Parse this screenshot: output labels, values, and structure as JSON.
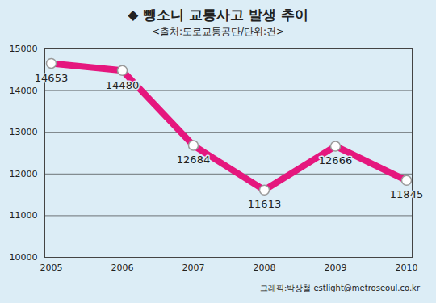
{
  "chart_data": {
    "type": "line",
    "title": "◆ 뺑소니 교통사고 발생 추이",
    "subtitle": "<출처:도로교통공단/단위:건>",
    "caption": "그래픽:박상철 estlight@metroseoul.co.kr",
    "categories": [
      "2005",
      "2006",
      "2007",
      "2008",
      "2009",
      "2010"
    ],
    "values": [
      14653,
      14480,
      12684,
      11613,
      12666,
      11845
    ],
    "color": "#e5177e",
    "marker": "circle",
    "line_style": "solid",
    "ylim": [
      10000,
      15000
    ],
    "yticks": [
      10000,
      11000,
      12000,
      13000,
      14000,
      15000
    ],
    "grid": true,
    "data_labels": true
  }
}
